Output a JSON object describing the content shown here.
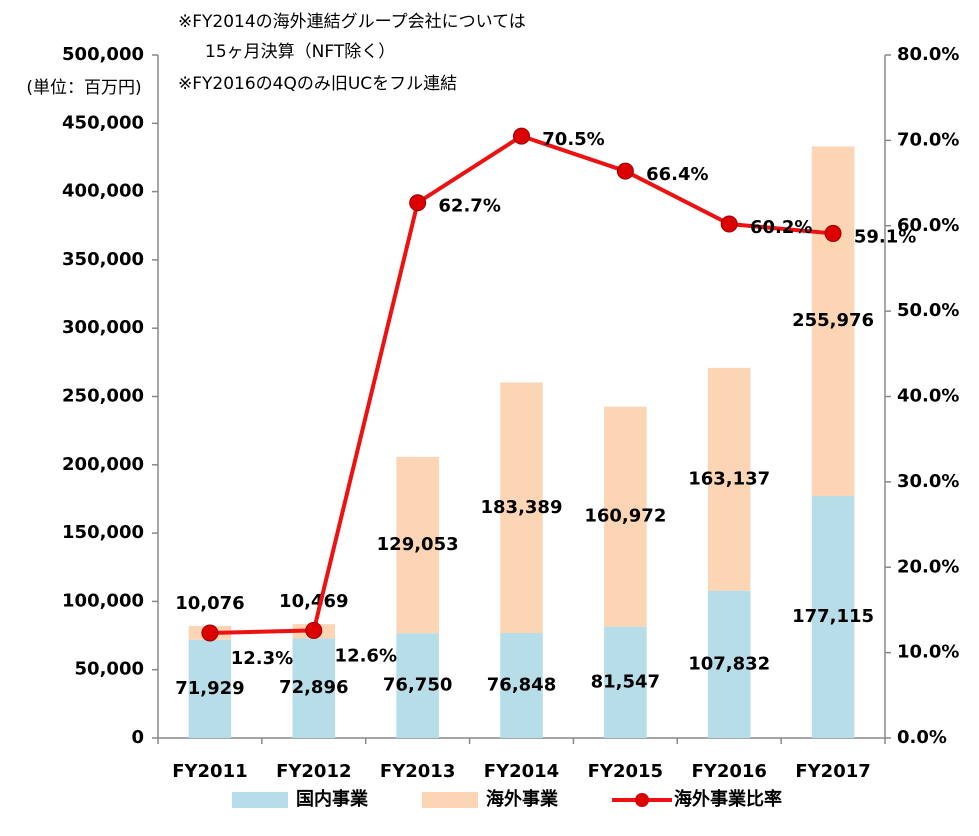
{
  "chart_data": {
    "type": "bar",
    "annotations": [
      "(単位：百万円)",
      "※FY2014の海外連結グループ会社については",
      "15ヶ月決算（NFT除く）",
      "※FY2016の4Qのみ旧UCをフル連結"
    ],
    "categories": [
      "FY2011",
      "FY2012",
      "FY2013",
      "FY2014",
      "FY2015",
      "FY2016",
      "FY2017"
    ],
    "series": [
      {
        "name": "国内事業",
        "color": "#b7dde8",
        "values": [
          71929,
          72896,
          76750,
          76848,
          81547,
          107832,
          177115
        ],
        "value_labels": [
          "71,929",
          "72,896",
          "76,750",
          "76,848",
          "81,547",
          "107,832",
          "177,115"
        ]
      },
      {
        "name": "海外事業",
        "color": "#fcd5b5",
        "values": [
          10076,
          10469,
          129053,
          183389,
          160972,
          163137,
          255976
        ],
        "value_labels": [
          "10,076",
          "10,469",
          "129,053",
          "183,389",
          "160,972",
          "163,137",
          "255,976"
        ]
      },
      {
        "name": "海外事業比率",
        "type": "line",
        "axis": "y2",
        "color": "#ee1111",
        "values": [
          12.3,
          12.6,
          62.7,
          70.5,
          66.4,
          60.2,
          59.1
        ],
        "value_labels": [
          "12.3%",
          "12.6%",
          "62.7%",
          "70.5%",
          "66.4%",
          "60.2%",
          "59.1%"
        ]
      }
    ],
    "stacked": true,
    "ylim": [
      0,
      500000
    ],
    "yticks": [
      0,
      {
        "value": 50000,
        "label": "50,000"
      },
      {
        "value": 100000,
        "label": "100,000"
      },
      {
        "value": 150000,
        "label": "150,000"
      },
      {
        "value": 200000,
        "label": "200,000"
      },
      {
        "value": 250000,
        "label": "250,000"
      },
      {
        "value": 300000,
        "label": "300,000"
      },
      {
        "value": 350000,
        "label": "350,000"
      },
      {
        "value": 400000,
        "label": "400,000"
      },
      {
        "value": 450000,
        "label": "450,000"
      },
      {
        "value": 500000,
        "label": "500,000"
      }
    ],
    "y2lim": [
      0,
      80
    ],
    "y2ticks": [
      {
        "value": 0,
        "label": "0.0%"
      },
      {
        "value": 10,
        "label": "10.0%"
      },
      {
        "value": 20,
        "label": "20.0%"
      },
      {
        "value": 30,
        "label": "30.0%"
      },
      {
        "value": 40,
        "label": "40.0%"
      },
      {
        "value": 50,
        "label": "50.0%"
      },
      {
        "value": 60,
        "label": "60.0%"
      },
      {
        "value": 70,
        "label": "70.0%"
      },
      {
        "value": 80,
        "label": "80.0%"
      }
    ],
    "legend": "bottom",
    "grid": false
  }
}
